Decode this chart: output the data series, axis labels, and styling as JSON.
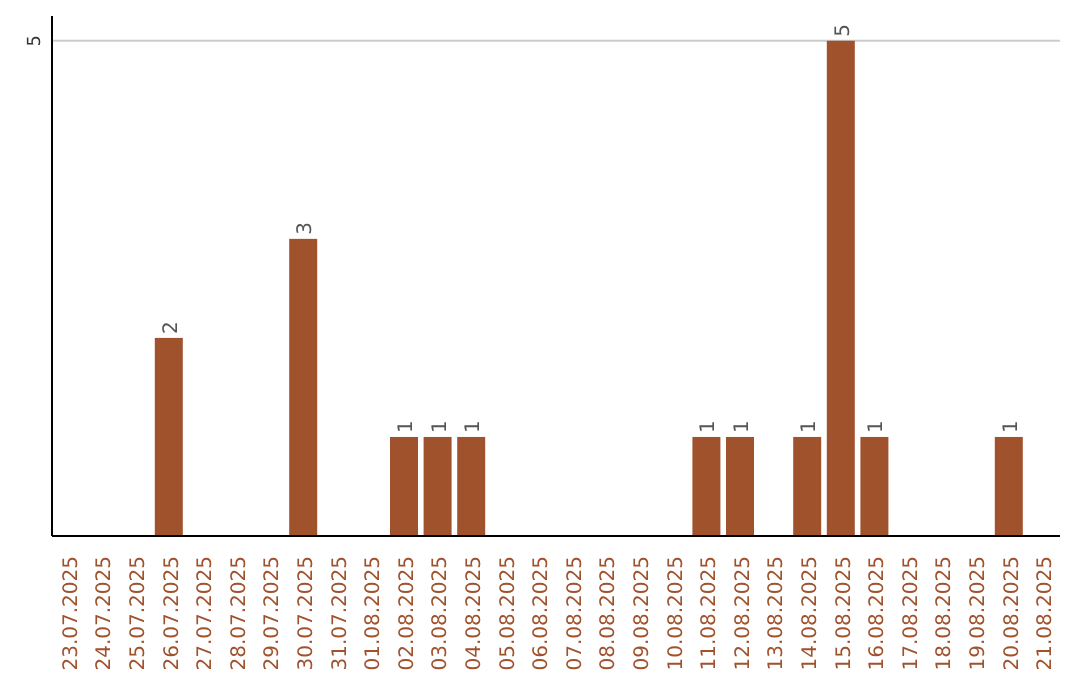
{
  "chart_data": {
    "type": "bar",
    "categories": [
      "23.07.2025",
      "24.07.2025",
      "25.07.2025",
      "26.07.2025",
      "27.07.2025",
      "28.07.2025",
      "29.07.2025",
      "30.07.2025",
      "31.07.2025",
      "01.08.2025",
      "02.08.2025",
      "03.08.2025",
      "04.08.2025",
      "05.08.2025",
      "06.08.2025",
      "07.08.2025",
      "08.08.2025",
      "09.08.2025",
      "10.08.2025",
      "11.08.2025",
      "12.08.2025",
      "13.08.2025",
      "14.08.2025",
      "15.08.2025",
      "16.08.2025",
      "17.08.2025",
      "18.08.2025",
      "19.08.2025",
      "20.08.2025",
      "21.08.2025"
    ],
    "values": [
      0,
      0,
      0,
      2,
      0,
      0,
      0,
      3,
      0,
      0,
      1,
      1,
      1,
      0,
      0,
      0,
      0,
      0,
      0,
      1,
      1,
      0,
      1,
      5,
      1,
      0,
      0,
      0,
      1,
      0
    ],
    "value_labels": [
      null,
      null,
      null,
      "2",
      null,
      null,
      null,
      "3",
      null,
      null,
      "1",
      "1",
      "1",
      null,
      null,
      null,
      null,
      null,
      null,
      "1",
      "1",
      null,
      "1",
      "5",
      "1",
      null,
      null,
      null,
      "1",
      null
    ],
    "color": "#a0522d",
    "ylim": [
      0,
      5.25
    ],
    "yticks": [
      5
    ],
    "grid": "y"
  }
}
